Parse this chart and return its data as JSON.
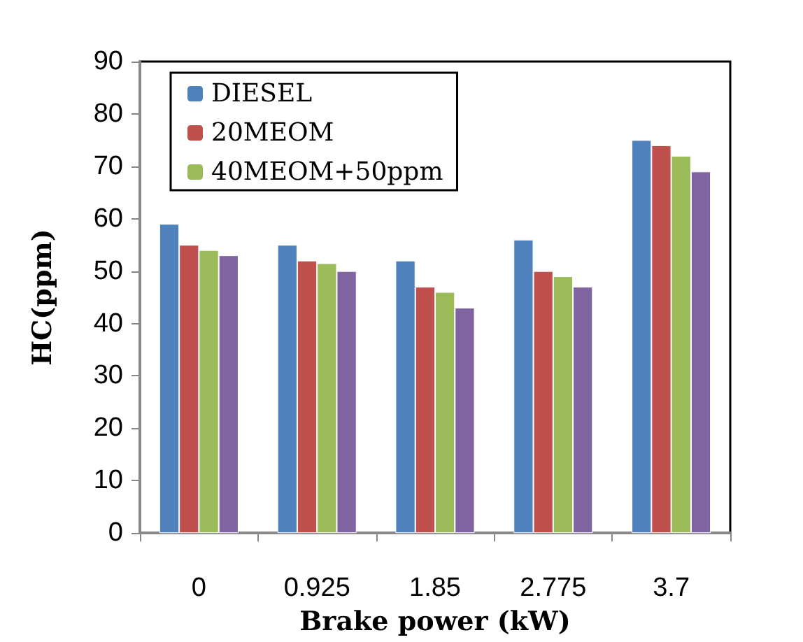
{
  "chart_data": {
    "type": "bar",
    "xlabel": "Brake power (kW)",
    "ylabel": "HC(ppm)",
    "categories": [
      "0",
      "0.925",
      "1.85",
      "2.775",
      "3.7"
    ],
    "series": [
      {
        "name": "DIESEL",
        "color": "#4f81bd",
        "values": [
          59,
          55,
          52,
          56,
          75
        ]
      },
      {
        "name": "20MEOM",
        "color": "#c0504d",
        "values": [
          55,
          52,
          47,
          50,
          74
        ]
      },
      {
        "name": "40MEOM+50ppm",
        "color": "#9bbb59",
        "values": [
          54,
          51.5,
          46,
          49,
          72
        ]
      },
      {
        "color": "#8064a2",
        "values": [
          53,
          50,
          43,
          47,
          69
        ]
      }
    ],
    "ylim": [
      0,
      90
    ],
    "yticks": [
      0,
      10,
      20,
      30,
      40,
      50,
      60,
      70,
      80,
      90
    ],
    "grid": false,
    "legend": "top left"
  }
}
